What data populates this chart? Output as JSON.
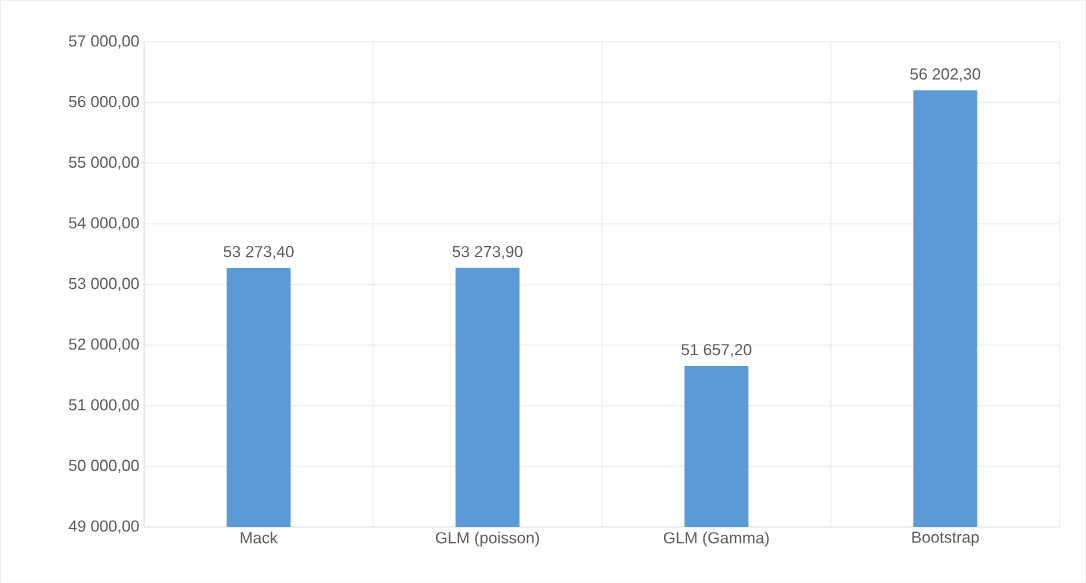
{
  "chart_data": {
    "type": "bar",
    "categories": [
      "Mack",
      "GLM (poisson)",
      "GLM (Gamma)",
      "Bootstrap"
    ],
    "values": [
      53273.4,
      53273.9,
      51657.2,
      56202.3
    ],
    "value_labels": [
      "53 273,40",
      "53 273,90",
      "51 657,20",
      "56 202,30"
    ],
    "color": "#5b9bd5",
    "ylim": [
      49000,
      57000
    ],
    "yticks": [
      {
        "value": 49000,
        "label": "49 000,00"
      },
      {
        "value": 50000,
        "label": "50 000,00"
      },
      {
        "value": 51000,
        "label": "51 000,00"
      },
      {
        "value": 52000,
        "label": "52 000,00"
      },
      {
        "value": 53000,
        "label": "53 000,00"
      },
      {
        "value": 54000,
        "label": "54 000,00"
      },
      {
        "value": 55000,
        "label": "55 000,00"
      },
      {
        "value": 56000,
        "label": "56 000,00"
      },
      {
        "value": 57000,
        "label": "57 000,00"
      }
    ],
    "grid": true
  }
}
